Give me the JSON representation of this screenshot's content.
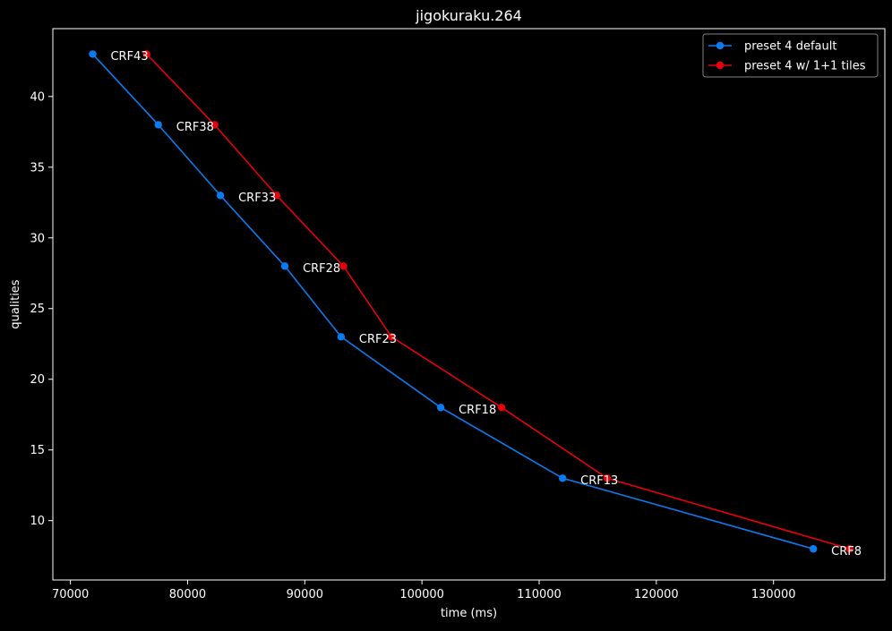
{
  "chart_data": {
    "type": "line",
    "title": "jigokuraku.264",
    "xlabel": "time (ms)",
    "ylabel": "qualities",
    "xlim": [
      68500,
      139500
    ],
    "ylim": [
      5.8,
      44.8
    ],
    "xticks": [
      70000,
      80000,
      90000,
      100000,
      110000,
      120000,
      130000
    ],
    "yticks": [
      10,
      15,
      20,
      25,
      30,
      35,
      40
    ],
    "grid": false,
    "legend_position": "top-right",
    "background": "#000000",
    "series": [
      {
        "name": "preset 4 default",
        "color": "#0a7cf0",
        "points": [
          {
            "x": 71900,
            "y": 43
          },
          {
            "x": 77500,
            "y": 38
          },
          {
            "x": 82800,
            "y": 33
          },
          {
            "x": 88300,
            "y": 28
          },
          {
            "x": 93100,
            "y": 23
          },
          {
            "x": 101600,
            "y": 18
          },
          {
            "x": 112000,
            "y": 13
          },
          {
            "x": 133400,
            "y": 8
          }
        ]
      },
      {
        "name": "preset 4 w/ 1+1 tiles",
        "color": "#e8000b",
        "points": [
          {
            "x": 76500,
            "y": 43
          },
          {
            "x": 82300,
            "y": 38
          },
          {
            "x": 87600,
            "y": 33
          },
          {
            "x": 93300,
            "y": 28
          },
          {
            "x": 97400,
            "y": 23
          },
          {
            "x": 106800,
            "y": 18
          },
          {
            "x": 115800,
            "y": 13
          },
          {
            "x": 136500,
            "y": 8
          }
        ]
      }
    ],
    "annotations": [
      {
        "text": "CRF43",
        "x": 71900,
        "y": 43
      },
      {
        "text": "CRF38",
        "x": 77500,
        "y": 38
      },
      {
        "text": "CRF33",
        "x": 82800,
        "y": 33
      },
      {
        "text": "CRF28",
        "x": 88300,
        "y": 28
      },
      {
        "text": "CRF23",
        "x": 93100,
        "y": 23
      },
      {
        "text": "CRF18",
        "x": 101600,
        "y": 18
      },
      {
        "text": "CRF13",
        "x": 112000,
        "y": 13
      },
      {
        "text": "CRF8",
        "x": 133400,
        "y": 8
      }
    ]
  }
}
